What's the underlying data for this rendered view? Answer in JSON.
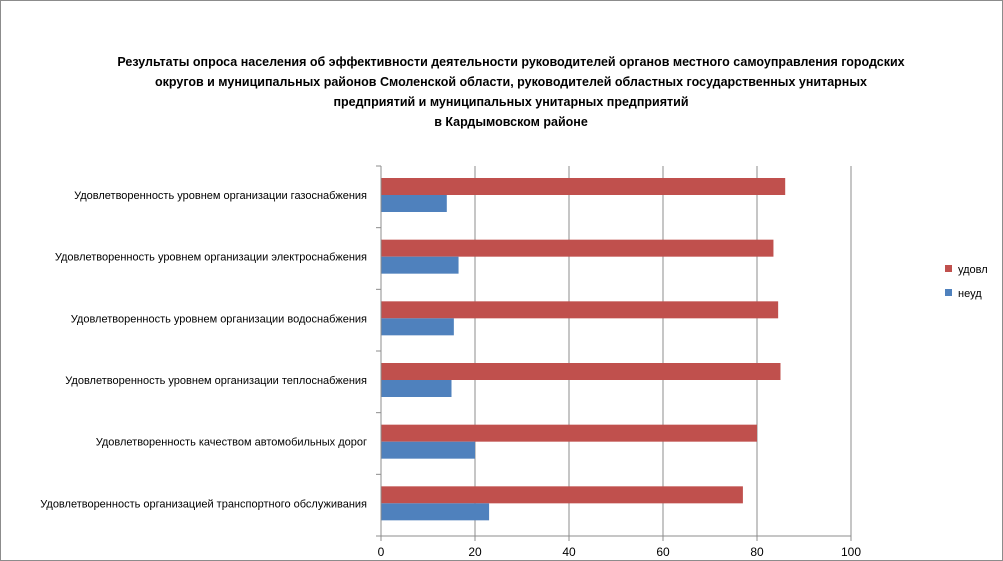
{
  "chart_data": {
    "type": "bar",
    "orientation": "horizontal",
    "title_lines": [
      "Результаты опроса населения об эффективности деятельности руководителей органов местного самоуправления городских",
      "округов и муниципальных районов Смоленской области, руководителей областных государственных унитарных",
      "предприятий и  муниципальных унитарных предприятий",
      "в Кардымовском районе"
    ],
    "categories": [
      "Удовлетворенность  уровнем  организации газоснабжения",
      "Удовлетворенность  уровнем организации электроснабжения",
      "Удовлетворенность  уровнем  организации водоснабжения",
      "Удовлетворенность  уровнем  организации теплоснабжения",
      "Удовлетворенность  качеством  автомобильных дорог",
      "Удовлетворенность  организацией  транспортного обслуживания"
    ],
    "series": [
      {
        "name": "удовл",
        "color": "#c0504d",
        "values": [
          86,
          83.5,
          84.5,
          85,
          80,
          77
        ]
      },
      {
        "name": "неуд",
        "color": "#4f81bd",
        "values": [
          14,
          16.5,
          15.5,
          15,
          20,
          23
        ]
      }
    ],
    "xlim": [
      0,
      100
    ],
    "xticks": [
      "0",
      "20",
      "40",
      "60",
      "80",
      "100"
    ],
    "grid": true,
    "legend": "right"
  }
}
